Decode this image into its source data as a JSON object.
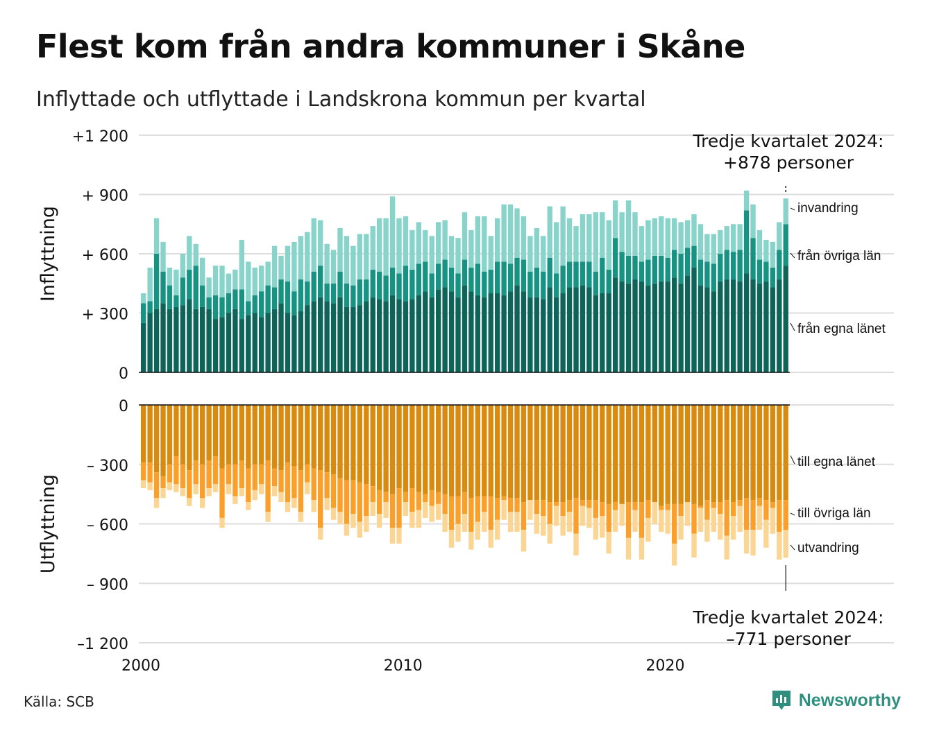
{
  "title": "Flest kom från andra kommuner i Skåne",
  "subtitle": "Inflyttade och utflyttade i Landskrona kommun per kvartal",
  "source": "Källa: SCB",
  "brand": "Newsworthy",
  "colors": {
    "in_own": "#0f6459",
    "in_other": "#179384",
    "in_immig": "#88d3ca",
    "out_own": "#d98b10",
    "out_other": "#faa02a",
    "out_emig": "#fbd594",
    "grid": "#dddddd"
  },
  "chart_data": {
    "type": "bar",
    "stacked": true,
    "x_axis_label_ticks": [
      "2000",
      "2010",
      "2020"
    ],
    "x_range": [
      2000,
      2024.75
    ],
    "panels": [
      {
        "name": "inflyttning",
        "ylabel": "Inflyttning",
        "ylim": [
          0,
          1200
        ],
        "y_ticks": [
          {
            "value": 1200,
            "label": "+1 200"
          },
          {
            "value": 900,
            "label": "+  900"
          },
          {
            "value": 600,
            "label": "+  600"
          },
          {
            "value": 300,
            "label": "+  300"
          },
          {
            "value": 0,
            "label": "0"
          }
        ],
        "series_labels": [
          "invandring",
          "från övriga län",
          "från egna länet"
        ],
        "annotation_line1": "Tredje kvartalet 2024:",
        "annotation_line2": "+878 personer"
      },
      {
        "name": "utflyttning",
        "ylabel": "Utflyttning",
        "ylim": [
          -1200,
          0
        ],
        "y_ticks": [
          {
            "value": 0,
            "label": "0"
          },
          {
            "value": -300,
            "label": "–  300"
          },
          {
            "value": -600,
            "label": "–  600"
          },
          {
            "value": -900,
            "label": "–  900"
          },
          {
            "value": -1200,
            "label": "–1 200"
          }
        ],
        "series_labels": [
          "till egna länet",
          "till övriga län",
          "utvandring"
        ],
        "annotation_line1": "Tredje kvartalet 2024:",
        "annotation_line2": "–771 personer"
      }
    ],
    "quarters_start": "2000Q1",
    "in_own": [
      250,
      300,
      320,
      350,
      320,
      330,
      340,
      370,
      320,
      330,
      320,
      270,
      280,
      300,
      320,
      270,
      290,
      300,
      280,
      300,
      320,
      350,
      300,
      290,
      310,
      340,
      360,
      380,
      360,
      350,
      380,
      330,
      330,
      340,
      360,
      380,
      370,
      360,
      390,
      370,
      360,
      370,
      390,
      410,
      380,
      420,
      430,
      410,
      380,
      440,
      410,
      390,
      380,
      400,
      400,
      390,
      410,
      440,
      410,
      380,
      380,
      370,
      430,
      380,
      400,
      430,
      430,
      440,
      430,
      390,
      400,
      400,
      480,
      460,
      450,
      470,
      460,
      440,
      450,
      460,
      460,
      480,
      450,
      490,
      530,
      440,
      430,
      410,
      460,
      470,
      470,
      460,
      500,
      470,
      450,
      460,
      430,
      470,
      540
    ],
    "in_other": [
      100,
      60,
      280,
      160,
      120,
      60,
      140,
      150,
      220,
      110,
      60,
      120,
      100,
      100,
      100,
      150,
      70,
      90,
      130,
      140,
      110,
      120,
      160,
      120,
      160,
      120,
      150,
      160,
      90,
      100,
      130,
      120,
      110,
      130,
      110,
      140,
      140,
      130,
      140,
      130,
      180,
      150,
      160,
      150,
      120,
      130,
      140,
      120,
      120,
      130,
      120,
      160,
      130,
      120,
      160,
      170,
      140,
      140,
      160,
      130,
      150,
      140,
      150,
      120,
      140,
      130,
      130,
      120,
      130,
      120,
      180,
      120,
      200,
      150,
      140,
      120,
      100,
      130,
      140,
      130,
      120,
      140,
      150,
      140,
      110,
      130,
      130,
      140,
      140,
      150,
      140,
      160,
      320,
      210,
      120,
      100,
      100,
      150,
      210
    ],
    "in_immig": [
      50,
      170,
      180,
      150,
      90,
      130,
      120,
      170,
      110,
      140,
      100,
      150,
      160,
      100,
      100,
      250,
      200,
      140,
      130,
      120,
      210,
      120,
      180,
      250,
      220,
      250,
      270,
      230,
      200,
      170,
      220,
      240,
      200,
      230,
      230,
      220,
      270,
      290,
      360,
      280,
      250,
      200,
      210,
      160,
      190,
      210,
      200,
      160,
      180,
      240,
      190,
      240,
      280,
      170,
      220,
      290,
      300,
      250,
      220,
      180,
      200,
      180,
      260,
      260,
      300,
      220,
      180,
      240,
      240,
      300,
      230,
      250,
      190,
      200,
      280,
      220,
      180,
      200,
      190,
      200,
      200,
      160,
      160,
      140,
      160,
      180,
      140,
      150,
      120,
      120,
      140,
      130,
      100,
      170,
      150,
      110,
      130,
      140,
      130
    ],
    "out_own": [
      290,
      290,
      340,
      360,
      300,
      260,
      300,
      330,
      280,
      300,
      280,
      260,
      320,
      300,
      300,
      280,
      320,
      300,
      300,
      280,
      320,
      330,
      290,
      310,
      330,
      300,
      320,
      330,
      340,
      350,
      370,
      380,
      380,
      390,
      400,
      410,
      430,
      440,
      450,
      420,
      440,
      420,
      440,
      450,
      430,
      440,
      450,
      460,
      460,
      440,
      470,
      460,
      460,
      460,
      470,
      460,
      470,
      470,
      490,
      480,
      480,
      480,
      490,
      490,
      490,
      480,
      470,
      480,
      480,
      480,
      490,
      500,
      490,
      500,
      490,
      490,
      490,
      480,
      490,
      510,
      500,
      500,
      500,
      490,
      500,
      510,
      480,
      490,
      490,
      480,
      490,
      480,
      470,
      480,
      470,
      480,
      490,
      480,
      480
    ],
    "out_emig": [
      40,
      40,
      50,
      50,
      40,
      40,
      40,
      40,
      50,
      50,
      40,
      40,
      50,
      50,
      40,
      40,
      40,
      50,
      50,
      50,
      50,
      50,
      50,
      50,
      50,
      60,
      60,
      60,
      60,
      60,
      60,
      60,
      70,
      80,
      80,
      70,
      70,
      80,
      80,
      80,
      70,
      80,
      90,
      80,
      80,
      80,
      90,
      90,
      90,
      90,
      90,
      90,
      100,
      90,
      100,
      100,
      100,
      100,
      110,
      100,
      100,
      100,
      100,
      100,
      100,
      100,
      110,
      100,
      100,
      110,
      110,
      110,
      110,
      110,
      110,
      110,
      110,
      120,
      110,
      110,
      120,
      110,
      120,
      120,
      120,
      120,
      110,
      120,
      130,
      120,
      120,
      130,
      120,
      130,
      120,
      140,
      130,
      140,
      140
    ],
    "out_total": [
      420,
      430,
      520,
      470,
      430,
      440,
      460,
      510,
      450,
      520,
      460,
      440,
      620,
      450,
      500,
      460,
      530,
      480,
      450,
      590,
      460,
      490,
      540,
      520,
      590,
      450,
      540,
      680,
      530,
      580,
      600,
      660,
      620,
      670,
      640,
      560,
      620,
      570,
      700,
      700,
      560,
      620,
      620,
      570,
      590,
      580,
      640,
      720,
      690,
      640,
      730,
      680,
      640,
      720,
      680,
      580,
      640,
      640,
      740,
      580,
      650,
      660,
      700,
      610,
      660,
      640,
      760,
      610,
      620,
      680,
      670,
      750,
      640,
      570,
      780,
      640,
      780,
      690,
      600,
      640,
      650,
      810,
      680,
      570,
      770,
      640,
      690,
      640,
      680,
      780,
      680,
      640,
      750,
      760,
      630,
      720,
      650,
      780,
      771
    ]
  }
}
